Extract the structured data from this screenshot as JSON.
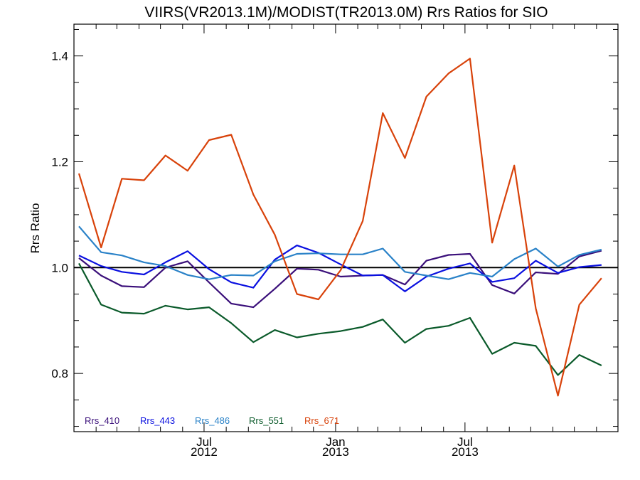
{
  "chart_data": {
    "type": "line",
    "title": "VIIRS(VR2013.1M)/MODIST(TR2013.0M)  Rrs Ratios for SIO",
    "xlabel": "",
    "ylabel": "Rrs Ratio",
    "ylim": [
      0.69,
      1.46
    ],
    "xlim": [
      "2012-01-01",
      "2014-01-31"
    ],
    "reference_line": 1.0,
    "y_ticks": [
      {
        "value": 0.8,
        "label": "0.8"
      },
      {
        "value": 1.0,
        "label": "1.0"
      },
      {
        "value": 1.2,
        "label": "1.2"
      },
      {
        "value": 1.4,
        "label": "1.4"
      }
    ],
    "x_ticks": [
      {
        "date": "2012-07-01",
        "label_top": "Jul",
        "label_bottom": "2012"
      },
      {
        "date": "2013-01-01",
        "label_top": "Jan",
        "label_bottom": "2013"
      },
      {
        "date": "2013-07-01",
        "label_top": "Jul",
        "label_bottom": "2013"
      }
    ],
    "x": [
      "2012-01-08",
      "2012-02-08",
      "2012-03-08",
      "2012-04-08",
      "2012-05-08",
      "2012-06-08",
      "2012-07-08",
      "2012-08-08",
      "2012-09-08",
      "2012-10-08",
      "2012-11-08",
      "2012-12-08",
      "2013-01-08",
      "2013-02-08",
      "2013-03-08",
      "2013-04-08",
      "2013-05-08",
      "2013-06-08",
      "2013-07-08",
      "2013-08-08",
      "2013-09-08",
      "2013-10-08",
      "2013-11-08",
      "2013-12-08",
      "2014-01-08"
    ],
    "series": [
      {
        "name": "Rrs_410",
        "color": "#3a0f7a",
        "values": [
          1.018,
          0.985,
          0.965,
          0.963,
          1.0,
          1.012,
          0.972,
          0.932,
          0.925,
          0.96,
          0.998,
          0.996,
          0.983,
          0.985,
          0.986,
          0.968,
          1.013,
          1.024,
          1.026,
          0.967,
          0.951,
          0.991,
          0.988,
          1.021,
          1.032
        ]
      },
      {
        "name": "Rrs_443",
        "color": "#0a10e0",
        "values": [
          1.023,
          1.003,
          0.992,
          0.987,
          1.01,
          1.031,
          0.997,
          0.972,
          0.962,
          1.015,
          1.042,
          1.028,
          1.006,
          0.985,
          0.986,
          0.955,
          0.983,
          0.998,
          1.008,
          0.973,
          0.98,
          1.013,
          0.99,
          1.001,
          1.005
        ]
      },
      {
        "name": "Rrs_486",
        "color": "#2a82c8",
        "values": [
          1.078,
          1.029,
          1.023,
          1.01,
          1.003,
          0.986,
          0.978,
          0.986,
          0.985,
          1.012,
          1.026,
          1.027,
          1.025,
          1.025,
          1.036,
          0.992,
          0.985,
          0.978,
          0.99,
          0.983,
          1.016,
          1.036,
          1.002,
          1.024,
          1.034
        ]
      },
      {
        "name": "Rrs_551",
        "color": "#0a5a2a",
        "values": [
          1.008,
          0.93,
          0.915,
          0.913,
          0.928,
          0.921,
          0.925,
          0.895,
          0.859,
          0.882,
          0.868,
          0.875,
          0.88,
          0.888,
          0.902,
          0.858,
          0.884,
          0.89,
          0.905,
          0.837,
          0.858,
          0.852,
          0.797,
          0.835,
          0.815
        ]
      },
      {
        "name": "Rrs_671",
        "color": "#d8420a",
        "values": [
          1.178,
          1.038,
          1.168,
          1.165,
          1.212,
          1.183,
          1.241,
          1.251,
          1.138,
          1.062,
          0.95,
          0.94,
          0.995,
          1.088,
          1.292,
          1.207,
          1.323,
          1.367,
          1.395,
          1.047,
          1.193,
          0.923,
          0.758,
          0.93,
          0.98
        ]
      }
    ],
    "legend": {
      "placement": "bottom-left",
      "orientation": "horizontal"
    },
    "grid": false
  }
}
